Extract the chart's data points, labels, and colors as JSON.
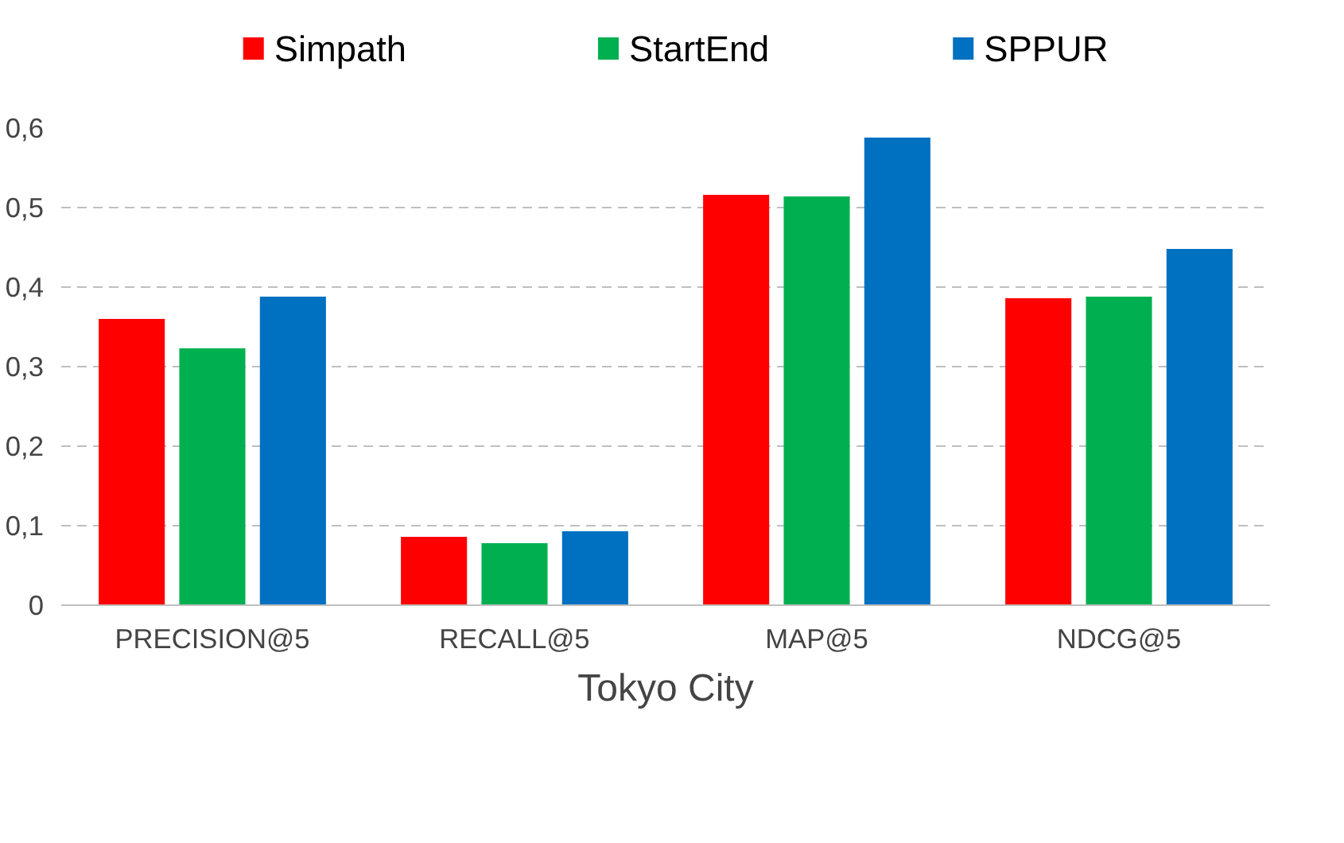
{
  "chart_data": {
    "type": "bar",
    "xlabel": "Tokyo City",
    "categories": [
      "PRECISION@5",
      "RECALL@5",
      "MAP@5",
      "NDCG@5"
    ],
    "series": [
      {
        "name": "Simpath",
        "color": "#ff0000",
        "values": [
          0.36,
          0.086,
          0.516,
          0.386
        ]
      },
      {
        "name": "StartEnd",
        "color": "#00b050",
        "values": [
          0.323,
          0.078,
          0.514,
          0.388
        ]
      },
      {
        "name": "SPPUR",
        "color": "#0070c0",
        "values": [
          0.388,
          0.093,
          0.588,
          0.448
        ]
      }
    ],
    "ylim": [
      0,
      0.6
    ],
    "yticks": [
      {
        "value": 0,
        "label": "0"
      },
      {
        "value": 0.1,
        "label": "0,1"
      },
      {
        "value": 0.2,
        "label": "0,2"
      },
      {
        "value": 0.3,
        "label": "0,3"
      },
      {
        "value": 0.4,
        "label": "0,4"
      },
      {
        "value": 0.5,
        "label": "0,5"
      },
      {
        "value": 0.6,
        "label": "0,6"
      }
    ],
    "grid": "y",
    "legend": "top"
  }
}
